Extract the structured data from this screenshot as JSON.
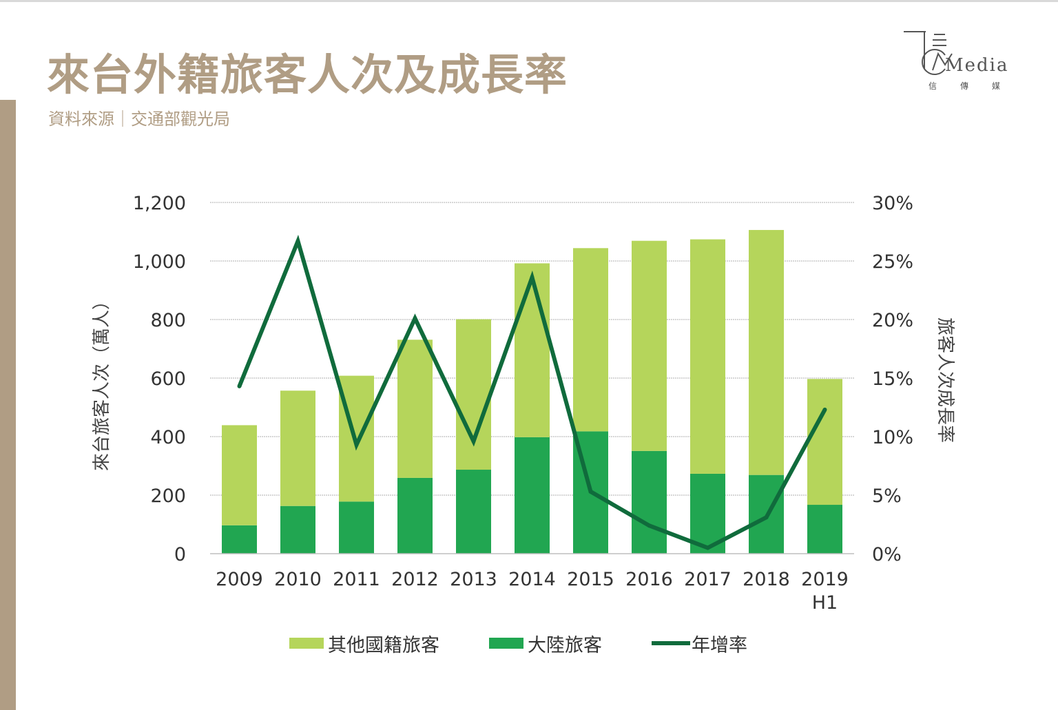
{
  "page": {
    "title": "來台外籍旅客人次及成長率",
    "source": "資料來源｜交通部觀光局"
  },
  "logo": {
    "wordmark": "Media",
    "subtitle": "信傳媒"
  },
  "colors": {
    "accent": "#b09d84",
    "other_visitors": "#b5d55b",
    "mainland_visitors": "#21a651",
    "growth_line": "#106b3c",
    "grid": "#c8c8c8"
  },
  "chart_data": {
    "type": "bar",
    "stacked": true,
    "title": "來台外籍旅客人次及成長率",
    "categories": [
      "2009",
      "2010",
      "2011",
      "2012",
      "2013",
      "2014",
      "2015",
      "2016",
      "2017",
      "2018",
      "2019\nH1"
    ],
    "category_lines": [
      [
        "2009"
      ],
      [
        "2010"
      ],
      [
        "2011"
      ],
      [
        "2012"
      ],
      [
        "2013"
      ],
      [
        "2014"
      ],
      [
        "2015"
      ],
      [
        "2016"
      ],
      [
        "2017"
      ],
      [
        "2018"
      ],
      [
        "2019",
        "H1"
      ]
    ],
    "series": [
      {
        "name": "大陸旅客",
        "type": "bar",
        "axis": "left",
        "values": [
          97,
          163,
          178,
          259,
          287,
          398,
          418,
          351,
          273,
          269,
          167
        ]
      },
      {
        "name": "其他國籍旅客",
        "type": "bar",
        "axis": "left",
        "values": [
          342,
          394,
          430,
          472,
          514,
          594,
          626,
          718,
          801,
          837,
          430
        ]
      },
      {
        "name": "年增率",
        "type": "line",
        "axis": "right",
        "values": [
          14.3,
          26.7,
          9.3,
          20.1,
          9.6,
          23.6,
          5.3,
          2.4,
          0.5,
          3.1,
          12.3
        ]
      }
    ],
    "legend_order": [
      "其他國籍旅客",
      "大陸旅客",
      "年增率"
    ],
    "ylabel": "來台旅客人次（萬人）",
    "y2label": "旅客人次成長率",
    "ylim": [
      0,
      1200
    ],
    "y2lim": [
      0,
      30
    ],
    "yticks": [
      "0",
      "200",
      "400",
      "600",
      "800",
      "1,000",
      "1,200"
    ],
    "y2ticks": [
      "0%",
      "5%",
      "10%",
      "15%",
      "20%",
      "25%",
      "30%"
    ],
    "grid": true,
    "legend_position": "bottom"
  }
}
